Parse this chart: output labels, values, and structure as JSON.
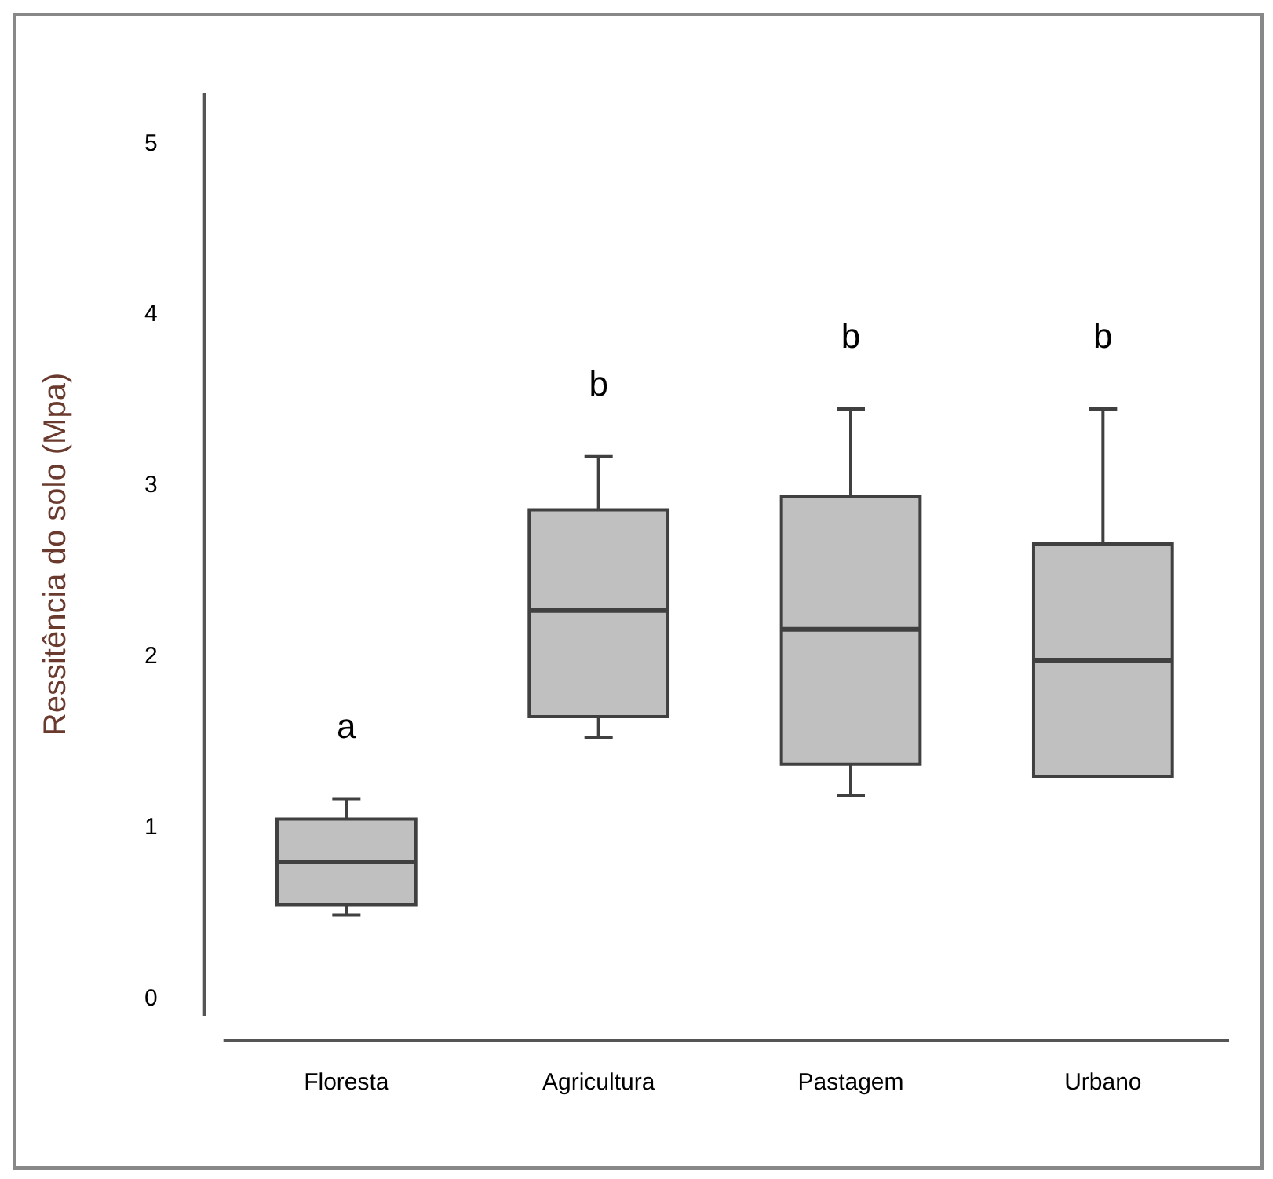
{
  "chart_data": {
    "type": "box",
    "ylabel": "Ressitência do solo (Mpa)",
    "categories": [
      "Floresta",
      "Agricultura",
      "Pastagem",
      "Urbano"
    ],
    "boxes": [
      {
        "low": 0.49,
        "q1": 0.55,
        "median": 0.8,
        "q3": 1.05,
        "high": 1.17
      },
      {
        "low": 1.53,
        "q1": 1.65,
        "median": 2.27,
        "q3": 2.86,
        "high": 3.17
      },
      {
        "low": 1.19,
        "q1": 1.37,
        "median": 2.16,
        "q3": 2.94,
        "high": 3.45
      },
      {
        "low": 1.3,
        "q1": 1.3,
        "median": 1.98,
        "q3": 2.66,
        "high": 3.45
      }
    ],
    "color": "#c0c0c0",
    "ylim": [
      -0.1,
      5.3
    ],
    "yticks": [
      0,
      1,
      2,
      3,
      4,
      5
    ],
    "grid": false,
    "legend": false,
    "annotations": [
      "a",
      "b",
      "b",
      "b"
    ]
  }
}
